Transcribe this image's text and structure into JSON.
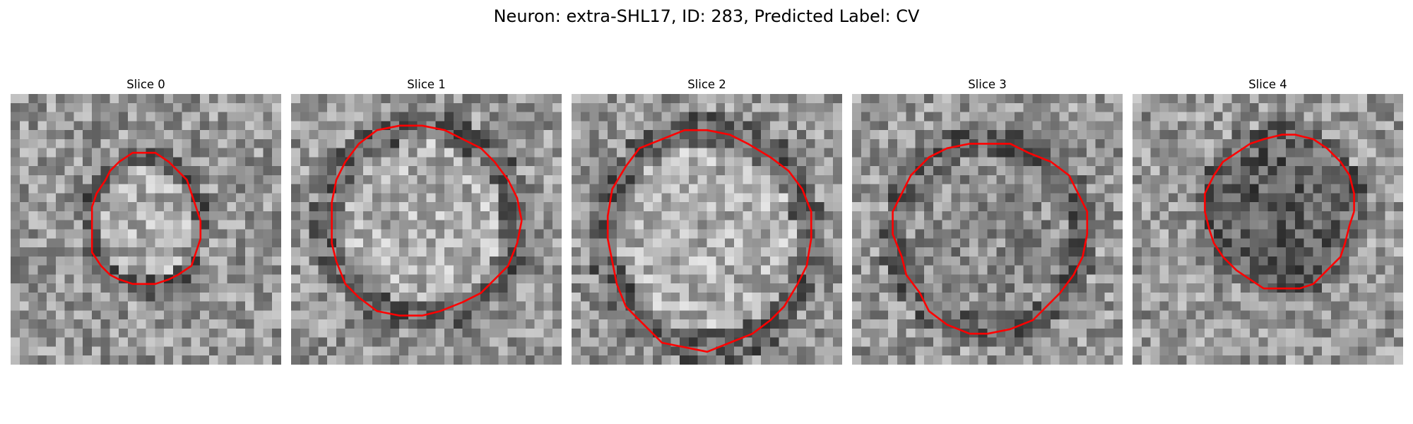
{
  "figure": {
    "title": "Neuron: extra-SHL17, ID: 283, Predicted Label: CV",
    "contour_color": "#ff0000",
    "colormap": "gray",
    "panels": [
      {
        "label": "Slice 0"
      },
      {
        "label": "Slice 1"
      },
      {
        "label": "Slice 2"
      },
      {
        "label": "Slice 3"
      },
      {
        "label": "Slice 4"
      }
    ]
  }
}
